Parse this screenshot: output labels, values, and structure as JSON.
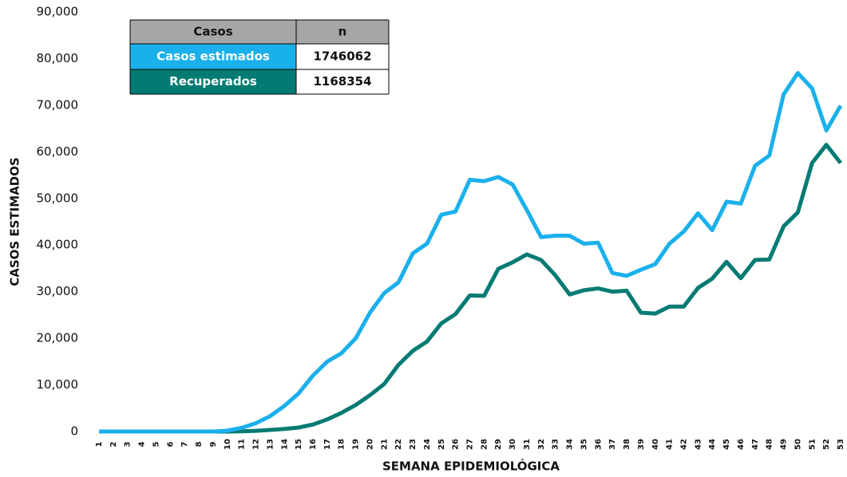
{
  "chart_data": {
    "type": "line",
    "x_label": "SEMANA EPIDEMIOLÓGICA",
    "y_label": "CASOS ESTIMADOS",
    "categories": [
      "1",
      "2",
      "3",
      "4",
      "5",
      "6",
      "7",
      "8",
      "9",
      "10",
      "11",
      "12",
      "13",
      "14",
      "15",
      "16",
      "17",
      "18",
      "19",
      "20",
      "21",
      "22",
      "23",
      "24",
      "25",
      "26",
      "27",
      "28",
      "29",
      "30",
      "31",
      "32",
      "33",
      "34",
      "35",
      "36",
      "37",
      "38",
      "39",
      "40",
      "41",
      "42",
      "43",
      "44",
      "45",
      "46",
      "47",
      "48",
      "49",
      "50",
      "51",
      "52",
      "53"
    ],
    "series": [
      {
        "name": "Casos estimados",
        "color": "#1ab0ec",
        "values": [
          0,
          0,
          0,
          0,
          0,
          0,
          0,
          0,
          0,
          200,
          800,
          1800,
          3300,
          5500,
          8200,
          12000,
          15000,
          16800,
          20000,
          25500,
          29700,
          32000,
          38200,
          40300,
          46500,
          47200,
          54000,
          53700,
          54600,
          53000,
          47500,
          41700,
          42000,
          42000,
          40300,
          40500,
          34000,
          33400,
          34700,
          35900,
          40300,
          42900,
          46800,
          43200,
          49300,
          48900,
          57000,
          59200,
          72300,
          76900,
          73600,
          64600,
          69900
        ]
      },
      {
        "name": "Recuperados",
        "color": "#037b73",
        "values": [
          0,
          0,
          0,
          0,
          0,
          0,
          0,
          0,
          0,
          0,
          50,
          150,
          350,
          550,
          850,
          1500,
          2600,
          4000,
          5700,
          7800,
          10200,
          14300,
          17300,
          19300,
          23200,
          25200,
          29200,
          29100,
          34900,
          36300,
          38000,
          36800,
          33500,
          29400,
          30300,
          30700,
          30000,
          30200,
          25500,
          25300,
          26800,
          26800,
          30800,
          32800,
          36400,
          32900,
          36800,
          36900,
          44000,
          47000,
          57600,
          61500,
          57600
        ]
      }
    ],
    "ylim": [
      0,
      90000
    ],
    "yticks": [
      0,
      {
        "value": 10000,
        "label": "10,000"
      },
      {
        "value": 20000,
        "label": "20,000"
      },
      {
        "value": 30000,
        "label": "30,000"
      },
      {
        "value": 40000,
        "label": "40,000"
      },
      {
        "value": 50000,
        "label": "50,000"
      },
      {
        "value": 60000,
        "label": "60,000"
      },
      {
        "value": 70000,
        "label": "70,000"
      },
      {
        "value": 80000,
        "label": "80,000"
      },
      {
        "value": 90000,
        "label": "90,000"
      }
    ],
    "legend_table": {
      "header": [
        "Casos",
        "n"
      ],
      "totals": [
        1746062,
        1168354
      ],
      "header_color": "#a6a6a6"
    }
  }
}
